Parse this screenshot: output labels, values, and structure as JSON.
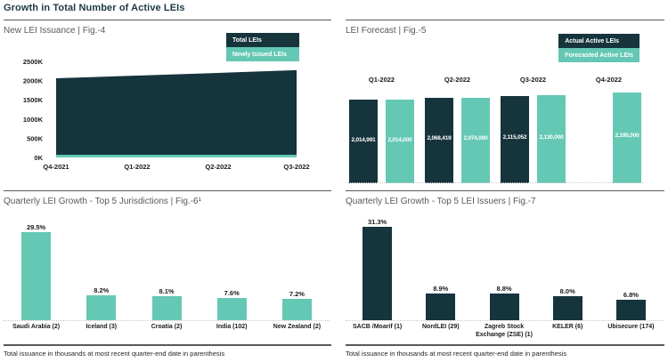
{
  "page": {
    "title": "Growth in Total Number of Active LEIs"
  },
  "colors": {
    "dark": "#16343c",
    "teal": "#64c8b4",
    "title": "#1d3a45",
    "fig_title_grey": "#595959"
  },
  "footnotes": {
    "left": "Total issuance in thousands at most recent quarter-end date in parenthesis",
    "right": "Total issuance in thousands at most recent quarter-end date in parenthesis"
  },
  "figures": {
    "fig4": {
      "title": "New LEI Issuance | Fig.-4"
    },
    "fig5": {
      "title": "LEI Forecast | Fig.-5"
    },
    "fig6": {
      "title": "Quarterly LEI Growth - Top 5 Jurisdictions | Fig.-6¹"
    },
    "fig7": {
      "title": "Quarterly LEI Growth - Top 5 LEI Issuers | Fig.-7"
    }
  },
  "chart_data": [
    {
      "id": "fig4",
      "type": "area",
      "title": "New LEI Issuance | Fig.-4",
      "x": [
        "Q4-2021",
        "Q1-2022",
        "Q2-2022",
        "Q3-2022"
      ],
      "series": [
        {
          "name": "Total LEIs",
          "color": "#16343c",
          "values": [
            2060,
            2130,
            2200,
            2270
          ]
        },
        {
          "name": "Newly Issued LEIs",
          "color": "#64c8b4",
          "values": [
            70,
            70,
            70,
            70
          ]
        }
      ],
      "yticks": [
        "0K",
        "500K",
        "1000K",
        "1500K",
        "2000K",
        "2500K"
      ],
      "ylim": [
        0,
        2500
      ],
      "legend_position": "top-right",
      "grid": false
    },
    {
      "id": "fig5",
      "type": "bar",
      "title": "LEI Forecast | Fig.-5",
      "categories": [
        "Q1-2022",
        "Q2-2022",
        "Q3-2022",
        "Q4-2022"
      ],
      "series": [
        {
          "name": "Actual Active LEIs",
          "color": "#16343c",
          "values": [
            2014991,
            2068419,
            2115052,
            null
          ]
        },
        {
          "name": "Forecasted Active LEIs",
          "color": "#64c8b4",
          "values": [
            2014000,
            2074000,
            2130000,
            2195000
          ]
        }
      ],
      "value_labels": [
        "2,014,991",
        "2,014,000",
        "2,068,419",
        "2,074,000",
        "2,115,052",
        "2,130,000",
        "2,195,000"
      ],
      "ylim": [
        0,
        2195000
      ],
      "legend_position": "top-right",
      "grid": false
    },
    {
      "id": "fig6",
      "type": "bar",
      "title": "Quarterly LEI Growth - Top 5 Jurisdictions | Fig.-6¹",
      "categories": [
        "Saudi Arabia (2)",
        "Iceland (3)",
        "Croatia (2)",
        "India (102)",
        "New Zealand (2)"
      ],
      "values": [
        29.5,
        8.2,
        8.1,
        7.6,
        7.2
      ],
      "unit": "%",
      "bar_color": "#64c8b4",
      "grid": false
    },
    {
      "id": "fig7",
      "type": "bar",
      "title": "Quarterly LEI Growth - Top 5 LEI Issuers | Fig.-7",
      "categories": [
        "SACB /Moarif (1)",
        "NordLEI (29)",
        "Zagreb Stock Exchange (ZSE) (1)",
        "KELER (6)",
        "Ubisecure (174)"
      ],
      "values": [
        31.3,
        8.9,
        8.8,
        8.0,
        6.8
      ],
      "unit": "%",
      "bar_color": "#16343c",
      "grid": false
    }
  ]
}
